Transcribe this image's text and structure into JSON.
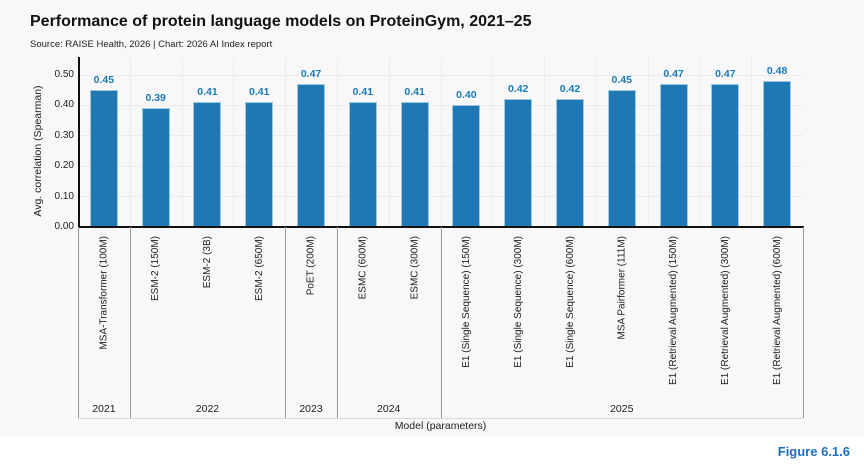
{
  "header": {
    "title": "Performance of protein language models on ProteinGym, 2021–25",
    "subtitle": "Source: RAISE Health, 2026 | Chart: 2026 AI Index report"
  },
  "figure_label": "Figure 6.1.6",
  "colors": {
    "bar_fill": "#1f77b4",
    "bar_edge": "#9ec9e2",
    "value_label": "#1a7ab9",
    "figure_label": "#1d6fc0",
    "canvas_bg": "#f8f8f8"
  },
  "chart_data": {
    "type": "bar",
    "title": "Performance of protein language models on ProteinGym, 2021–25",
    "xlabel": "Model (parameters)",
    "ylabel": "Avg. correlation (Spearman)",
    "ylim": [
      0,
      0.5
    ],
    "ytick_labels": [
      "0.00",
      "0.10",
      "0.20",
      "0.30",
      "0.40",
      "0.50"
    ],
    "grid": true,
    "legend": "none",
    "categories": [
      "MSA-Transformer (100M)",
      "ESM-2 (150M)",
      "ESM-2 (3B)",
      "ESM-2 (650M)",
      "PoET (200M)",
      "ESMC (600M)",
      "ESMC (300M)",
      "E1 (Single Sequence) (150M)",
      "E1 (Single Sequence) (300M)",
      "E1 (Single Sequence) (600M)",
      "MSA Pairformer (111M)",
      "E1 (Retrieval Augmented) (150M)",
      "E1 (Retrieval Augmented) (300M)",
      "E1 (Retrieval Augmented) (600M)"
    ],
    "values": [
      0.45,
      0.39,
      0.41,
      0.41,
      0.47,
      0.41,
      0.41,
      0.4,
      0.42,
      0.42,
      0.45,
      0.47,
      0.47,
      0.48
    ],
    "value_labels": [
      "0.45",
      "0.39",
      "0.41",
      "0.41",
      "0.47",
      "0.41",
      "0.41",
      "0.40",
      "0.42",
      "0.42",
      "0.45",
      "0.47",
      "0.47",
      "0.48"
    ],
    "year_groups": [
      {
        "label": "2021",
        "count": 1
      },
      {
        "label": "2022",
        "count": 3
      },
      {
        "label": "2023",
        "count": 1
      },
      {
        "label": "2024",
        "count": 2
      },
      {
        "label": "2025",
        "count": 7
      }
    ]
  }
}
